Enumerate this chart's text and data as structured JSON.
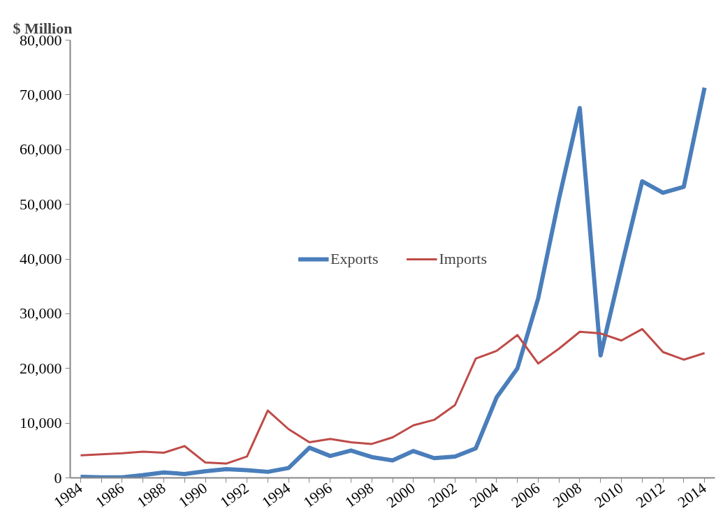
{
  "chart_data": {
    "type": "line",
    "ylabel": "$ Million",
    "categories": [
      "1984",
      null,
      "1986",
      null,
      "1988",
      null,
      "1990",
      null,
      "1992",
      null,
      "1994",
      null,
      "1996",
      null,
      "1998",
      null,
      "2000",
      null,
      "2002",
      null,
      "2004",
      null,
      "2006",
      null,
      "2008",
      null,
      "2010",
      null,
      "2012",
      null,
      "2014"
    ],
    "series": [
      {
        "name": "Exports",
        "color": "#4a7ebb",
        "values": [
          200,
          100,
          100,
          500,
          1000,
          700,
          1200,
          1600,
          1400,
          1100,
          1800,
          5500,
          4000,
          5000,
          3800,
          3200,
          4900,
          3600,
          3900,
          5400,
          14700,
          20000,
          32800,
          51000,
          67600,
          22400,
          38500,
          54200,
          52100,
          53200,
          71300
        ]
      },
      {
        "name": "Imports",
        "color": "#be4b48",
        "values": [
          4100,
          4300,
          4500,
          4800,
          4600,
          5800,
          2800,
          2600,
          3900,
          12300,
          8900,
          6500,
          7100,
          6500,
          6200,
          7400,
          9600,
          10600,
          13300,
          21800,
          23200,
          26100,
          20900,
          23600,
          26700,
          26400,
          25100,
          27200,
          23000,
          21600,
          22800
        ]
      }
    ],
    "ylim": [
      0,
      80000
    ],
    "yticks": [
      {
        "value": 0,
        "label": "0"
      },
      {
        "value": 10000,
        "label": "10,000"
      },
      {
        "value": 20000,
        "label": "20,000"
      },
      {
        "value": 30000,
        "label": "30,000"
      },
      {
        "value": 40000,
        "label": "40,000"
      },
      {
        "value": 50000,
        "label": "50,000"
      },
      {
        "value": 60000,
        "label": "60,000"
      },
      {
        "value": 70000,
        "label": "70,000"
      },
      {
        "value": 80000,
        "label": "80,000"
      }
    ],
    "grid": false,
    "legend": "center",
    "marker": "none",
    "line_style": "solid"
  }
}
